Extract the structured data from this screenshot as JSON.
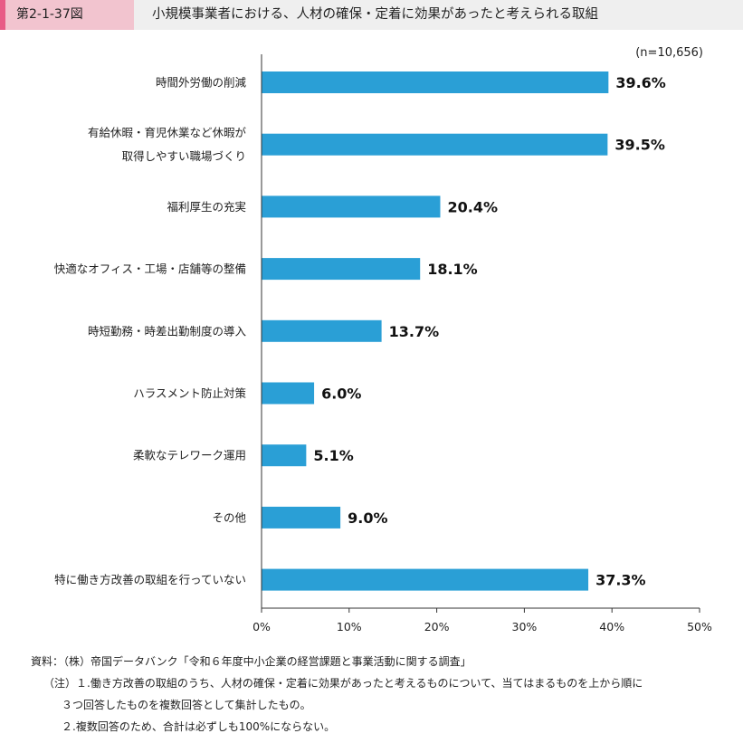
{
  "header": {
    "figure_number": "第2-1-37図",
    "title": "小規模事業者における、人材の確保・定着に効果があったと考えられる取組"
  },
  "chart_data": {
    "type": "bar",
    "orientation": "horizontal",
    "sample_note": "(n=10,656)",
    "categories": [
      [
        "時間外労働の削減"
      ],
      [
        "有給休暇・育児休業など休暇が",
        "取得しやすい職場づくり"
      ],
      [
        "福利厚生の充実"
      ],
      [
        "快適なオフィス・工場・店舗等の整備"
      ],
      [
        "時短勤務・時差出勤制度の導入"
      ],
      [
        "ハラスメント防止対策"
      ],
      [
        "柔軟なテレワーク運用"
      ],
      [
        "その他"
      ],
      [
        "特に働き方改善の取組を行っていない"
      ]
    ],
    "values": [
      39.6,
      39.5,
      20.4,
      18.1,
      13.7,
      6.0,
      5.1,
      9.0,
      37.3
    ],
    "value_labels": [
      "39.6%",
      "39.5%",
      "20.4%",
      "18.1%",
      "13.7%",
      "6.0%",
      "5.1%",
      "9.0%",
      "37.3%"
    ],
    "xlim": [
      0,
      50
    ],
    "xticks": [
      0,
      10,
      20,
      30,
      40,
      50
    ],
    "xtick_labels": [
      "0%",
      "10%",
      "20%",
      "30%",
      "40%",
      "50%"
    ],
    "bar_color": "#2a9fd6",
    "grid": false
  },
  "notes": {
    "source": "資料：（株）帝国データバンク「令和６年度中小企業の経営課題と事業活動に関する調査」",
    "note1_line1": "（注）１.働き方改善の取組のうち、人材の確保・定着に効果があったと考えるものについて、当てはまるものを上から順に",
    "note1_line2": "３つ回答したものを複数回答として集計したもの。",
    "note2": "２.複数回答のため、合計は必ずしも100%にならない。"
  }
}
